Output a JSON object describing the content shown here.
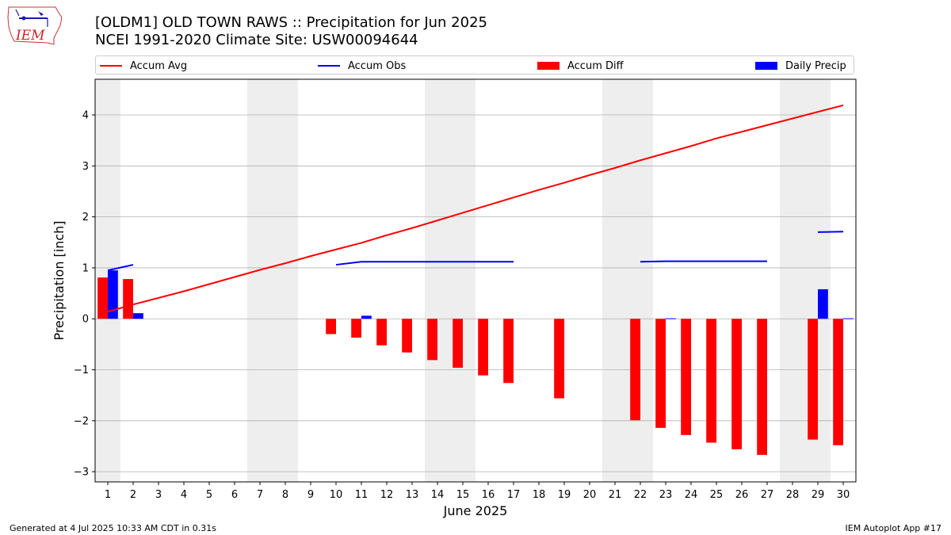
{
  "header": {
    "title_line1": "[OLDM1] OLD TOWN RAWS :: Precipitation for Jun 2025",
    "title_line2": "NCEI 1991-2020 Climate Site: USW00094644"
  },
  "logo": {
    "text": "IEM",
    "icon": "iem-iowa-logo-icon"
  },
  "legend": {
    "items": [
      {
        "label": "Accum Avg",
        "kind": "line",
        "color": "#ff0000"
      },
      {
        "label": "Accum Obs",
        "kind": "line",
        "color": "#0000ff"
      },
      {
        "label": "Accum Diff",
        "kind": "patch",
        "color": "#ff0000"
      },
      {
        "label": "Daily Precip",
        "kind": "patch",
        "color": "#0000ff"
      }
    ]
  },
  "footer": {
    "left": "Generated at 4 Jul 2025 10:33 AM CDT in 0.31s",
    "right": "IEM Autoplot App #17"
  },
  "chart_data": {
    "type": "bar",
    "xlabel": "June 2025",
    "ylabel": "Precipitation [inch]",
    "xlim": [
      0.5,
      30.5
    ],
    "ylim": [
      -3.2,
      4.7
    ],
    "yticks": [
      4,
      3,
      2,
      1,
      0,
      -1,
      -2,
      -3
    ],
    "ytick_labels": [
      "4",
      "3",
      "2",
      "1",
      "0",
      "−1",
      "−2",
      "−3"
    ],
    "x": [
      1,
      2,
      3,
      4,
      5,
      6,
      7,
      8,
      9,
      10,
      11,
      12,
      13,
      14,
      15,
      16,
      17,
      18,
      19,
      20,
      21,
      22,
      23,
      24,
      25,
      26,
      27,
      28,
      29,
      30
    ],
    "grid_y": true,
    "weekend_spans": [
      [
        0.5,
        1.5
      ],
      [
        6.5,
        8.5
      ],
      [
        13.5,
        15.5
      ],
      [
        20.5,
        22.5
      ],
      [
        27.5,
        29.5
      ]
    ],
    "colors": {
      "avg": "#ff0000",
      "obs": "#0000ff",
      "diff": "#ff0000",
      "daily": "#0000ff",
      "weekend": "#eeeeee",
      "grid": "#b0b0b0"
    },
    "series": [
      {
        "name": "Accum Avg",
        "kind": "line",
        "values": [
          0.14,
          0.28,
          0.41,
          0.54,
          0.68,
          0.82,
          0.96,
          1.09,
          1.23,
          1.36,
          1.49,
          1.64,
          1.78,
          1.93,
          2.08,
          2.23,
          2.38,
          2.53,
          2.67,
          2.82,
          2.96,
          3.11,
          3.25,
          3.39,
          3.54,
          3.67,
          3.8,
          3.93,
          4.06,
          4.19
        ]
      },
      {
        "name": "Accum Obs",
        "kind": "line",
        "values": [
          0.95,
          1.06,
          null,
          null,
          null,
          null,
          null,
          null,
          null,
          1.06,
          1.12,
          1.12,
          1.12,
          1.12,
          1.12,
          1.12,
          1.12,
          null,
          null,
          null,
          null,
          1.12,
          1.13,
          1.13,
          1.13,
          1.13,
          1.13,
          null,
          1.7,
          1.71
        ]
      },
      {
        "name": "Accum Diff",
        "kind": "bar",
        "values": [
          0.81,
          0.78,
          null,
          null,
          null,
          null,
          null,
          null,
          null,
          -0.3,
          -0.37,
          -0.52,
          -0.66,
          -0.81,
          -0.96,
          -1.11,
          -1.26,
          null,
          -1.56,
          null,
          null,
          -1.99,
          -2.14,
          -2.28,
          -2.43,
          -2.56,
          -2.67,
          null,
          -2.37,
          -2.48
        ]
      },
      {
        "name": "Daily Precip",
        "kind": "bar",
        "values": [
          0.95,
          0.11,
          null,
          null,
          null,
          null,
          null,
          null,
          null,
          null,
          0.06,
          null,
          null,
          null,
          null,
          null,
          null,
          null,
          null,
          null,
          null,
          null,
          0.01,
          null,
          null,
          null,
          null,
          null,
          0.58,
          0.01
        ]
      }
    ]
  }
}
